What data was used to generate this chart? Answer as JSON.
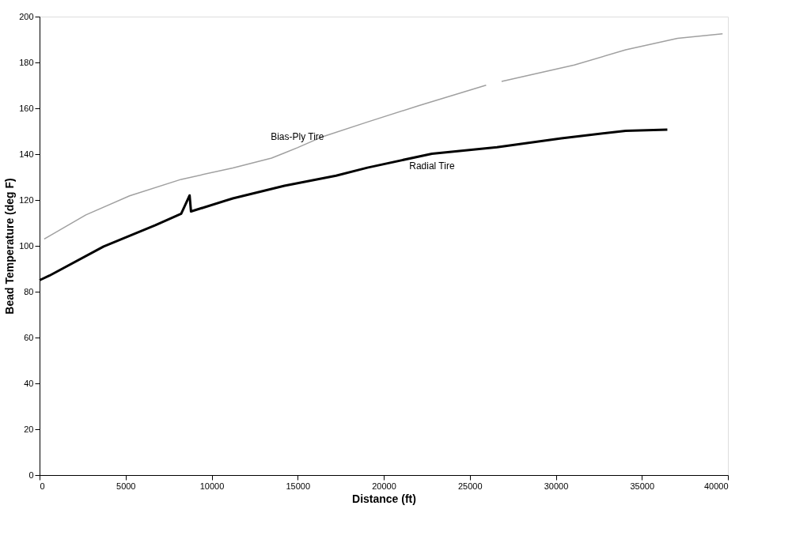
{
  "chart_data": {
    "type": "line",
    "xlabel": "Distance (ft)",
    "ylabel": "Bead Temperature (deg F)",
    "xlim": [
      0,
      40000
    ],
    "xticks": [
      0,
      5000,
      10000,
      15000,
      20000,
      25000,
      30000,
      35000,
      40000
    ],
    "ylim": [
      0,
      200
    ],
    "yticks": [
      0,
      20,
      40,
      60,
      80,
      100,
      120,
      140,
      160,
      180,
      200
    ],
    "grid": false,
    "marker": "none",
    "line_style": "solid",
    "annotations": [
      "Bias-Ply Tire",
      "Radial Tire"
    ],
    "series": [
      {
        "color": "#a0a0a0",
        "x": [
          270,
          2690,
          5230,
          8230,
          11230,
          13480,
          14230,
          14980,
          16480,
          19050,
          22060,
          25950,
          26400,
          26850,
          31070,
          34060,
          37070,
          39690
        ],
        "values": [
          103,
          113.5,
          121.8,
          129,
          134,
          138.3,
          140.5,
          142.8,
          147.7,
          154,
          161.2,
          170.1,
          null,
          171.7,
          178.9,
          185.5,
          190.5,
          192.5
        ]
      },
      {
        "color": "#000000",
        "x": [
          0,
          570,
          3720,
          6730,
          8230,
          8720,
          8800,
          11230,
          14230,
          17230,
          19050,
          22800,
          26580,
          30320,
          34060,
          36480
        ],
        "values": [
          85,
          87,
          99.7,
          109,
          114,
          122,
          115,
          120.7,
          126.2,
          130.6,
          134.1,
          140.2,
          143,
          146.9,
          150.2,
          150.7
        ]
      }
    ]
  }
}
